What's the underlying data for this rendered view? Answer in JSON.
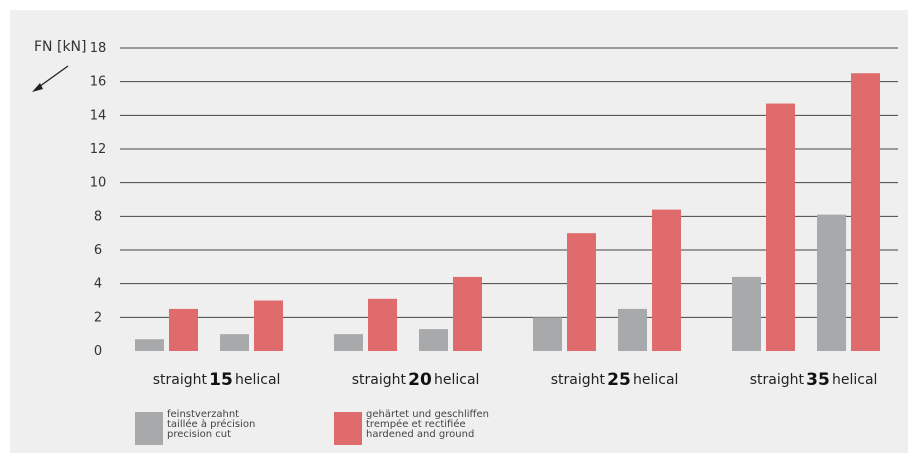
{
  "chart_data": {
    "type": "bar",
    "ylabel": "FN [kN]",
    "ylim": [
      0,
      18
    ],
    "yticks": [
      0,
      2,
      4,
      6,
      8,
      10,
      12,
      14,
      16,
      18
    ],
    "grid": true,
    "groups": [
      {
        "number": "15",
        "left_label": "straight",
        "right_label": "helical",
        "values": {
          "straight": {
            "precision": 0.7,
            "hardened": 2.5
          },
          "helical": {
            "precision": 1.0,
            "hardened": 3.0
          }
        }
      },
      {
        "number": "20",
        "left_label": "straight",
        "right_label": "helical",
        "values": {
          "straight": {
            "precision": 1.0,
            "hardened": 3.1
          },
          "helical": {
            "precision": 1.3,
            "hardened": 4.4
          }
        }
      },
      {
        "number": "25",
        "left_label": "straight",
        "right_label": "helical",
        "values": {
          "straight": {
            "precision": 2.0,
            "hardened": 7.0
          },
          "helical": {
            "precision": 2.5,
            "hardened": 8.4
          }
        }
      },
      {
        "number": "35",
        "left_label": "straight",
        "right_label": "helical",
        "values": {
          "straight": {
            "precision": 4.4,
            "hardened": 14.7
          },
          "helical": {
            "precision": 8.1,
            "hardened": 16.5
          }
        }
      }
    ],
    "legend": [
      {
        "key": "precision",
        "color": "#a8a9ab",
        "lines": [
          "feinstverzahnt",
          "taillée à précision",
          "precision cut"
        ]
      },
      {
        "key": "hardened",
        "color": "#e06b6d",
        "lines": [
          "gehärtet und geschliffen",
          "trempée et rectifiée",
          "hardened and ground"
        ]
      }
    ]
  }
}
